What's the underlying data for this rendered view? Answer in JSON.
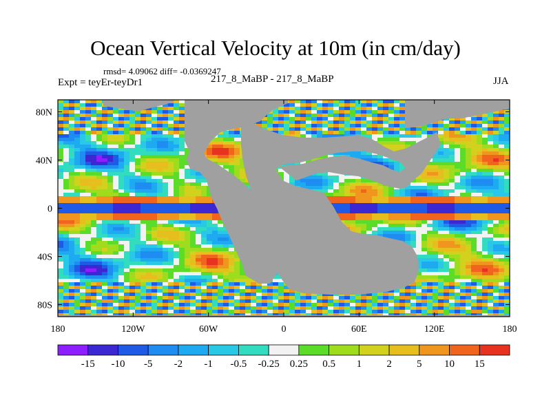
{
  "chart_data": {
    "type": "heatmap",
    "title": "Ocean Vertical Velocity at 10m (in cm/day)",
    "subtitle": "rmsd= 4.09062 diff= -0.0369247",
    "left_label": "Expt = teyEr-teyDr1",
    "center_label": "217_8_MaBP - 217_8_MaBP",
    "right_label": "JJA",
    "x_range": [
      -180,
      180
    ],
    "y_range": [
      -90,
      90
    ],
    "x_ticks": [
      {
        "value": -180,
        "label": "180"
      },
      {
        "value": -120,
        "label": "120W"
      },
      {
        "value": -60,
        "label": "60W"
      },
      {
        "value": 0,
        "label": "0"
      },
      {
        "value": 60,
        "label": "60E"
      },
      {
        "value": 120,
        "label": "120E"
      },
      {
        "value": 180,
        "label": "180"
      }
    ],
    "y_ticks": [
      {
        "value": 80,
        "label": "80N"
      },
      {
        "value": 40,
        "label": "40N"
      },
      {
        "value": 0,
        "label": "0"
      },
      {
        "value": -40,
        "label": "40S"
      },
      {
        "value": -80,
        "label": "80S"
      }
    ],
    "colorbar": {
      "colors": [
        "#8c1eff",
        "#3c28d2",
        "#1e5ae6",
        "#1e8cf0",
        "#1eaaf0",
        "#28c8e6",
        "#32dcbe",
        "#f2f2f2",
        "#5adc28",
        "#a0dc1e",
        "#d2d21e",
        "#e6be1e",
        "#f0961e",
        "#f0641e",
        "#e6321e"
      ],
      "levels": [
        "-15",
        "-10",
        "-5",
        "-2",
        "-1",
        "-0.5",
        "-0.25",
        "0.25",
        "0.5",
        "1",
        "2",
        "5",
        "10",
        "15"
      ]
    },
    "land_color": "#a0a0a0"
  }
}
